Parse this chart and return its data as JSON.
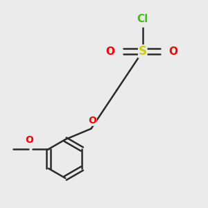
{
  "bg_color": "#ebebeb",
  "bond_color": "#2a2a2a",
  "S_color": "#cccc00",
  "O_color": "#ff0000",
  "Cl_color": "#33cc00",
  "bond_width": 1.8,
  "figsize": [
    3.0,
    3.0
  ],
  "dpi": 100,
  "Cl_text": "Cl",
  "S_text": "S",
  "O_text": "O",
  "methoxy_label": "O"
}
